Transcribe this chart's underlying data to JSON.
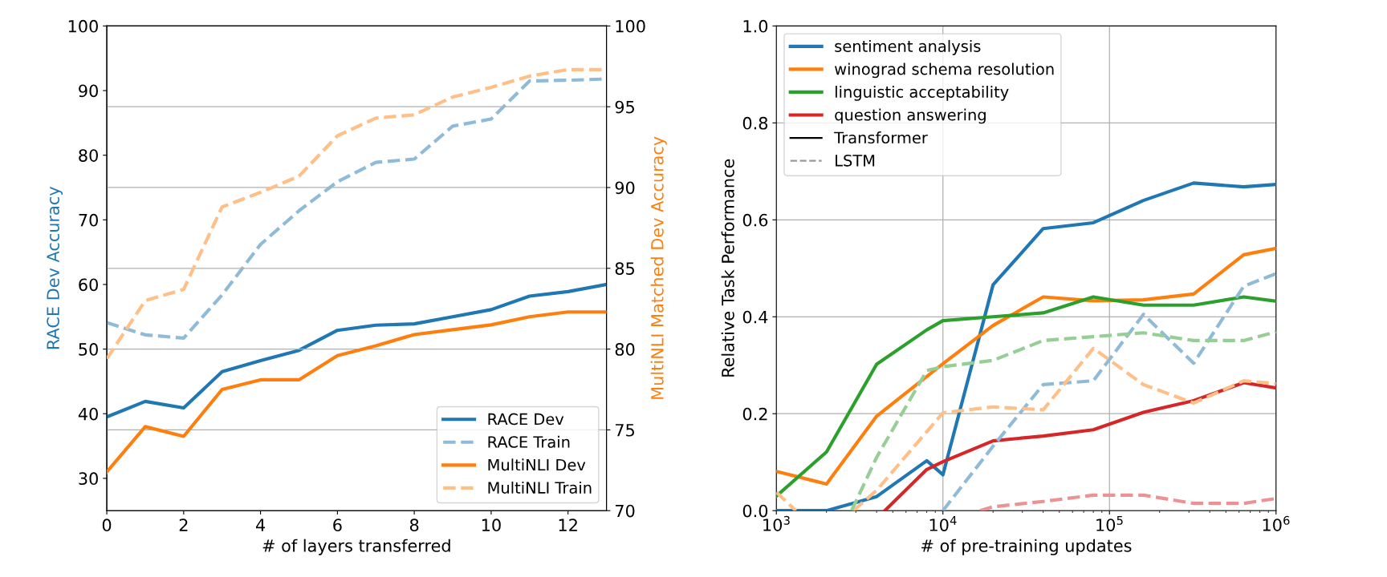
{
  "chart_data": [
    {
      "type": "line",
      "xlabel": "# of layers transferred",
      "ylabel": "RACE Dev Accuracy",
      "y2label": "MultiNLI Matched Dev Accuracy",
      "x": [
        0,
        1,
        2,
        3,
        4,
        5,
        6,
        7,
        8,
        9,
        10,
        11,
        12,
        13
      ],
      "xlim": [
        0,
        13
      ],
      "xticks": [
        0,
        2,
        4,
        6,
        8,
        10,
        12
      ],
      "ylim": [
        25,
        100
      ],
      "yticks": [
        30,
        40,
        50,
        60,
        70,
        80,
        90,
        100
      ],
      "y2lim": [
        70,
        100
      ],
      "y2ticks": [
        70,
        75,
        80,
        85,
        90,
        95,
        100
      ],
      "grid": "y2",
      "legend": "lower right",
      "series": [
        {
          "name": "RACE Dev",
          "color": "#1f77b4",
          "line_style": "solid",
          "values": [
            39.5,
            41.9,
            40.9,
            46.5,
            48.2,
            49.8,
            52.9,
            53.7,
            53.9,
            55.0,
            56.1,
            58.2,
            58.9,
            60.0
          ]
        },
        {
          "name": "RACE Train",
          "color": "#8fbbd9",
          "line_style": "dashed",
          "values": [
            54.1,
            52.2,
            51.7,
            58.4,
            66.2,
            71.4,
            75.9,
            78.9,
            79.4,
            84.5,
            85.6,
            91.5,
            91.6,
            91.8
          ]
        },
        {
          "name": "MultiNLI Dev",
          "color": "#ff7f0e",
          "line_style": "solid",
          "axis": "y2",
          "values": [
            72.4,
            75.2,
            74.6,
            77.5,
            78.1,
            78.1,
            79.6,
            80.2,
            80.9,
            81.2,
            81.5,
            82.0,
            82.3,
            82.3
          ]
        },
        {
          "name": "MultiNLI Train",
          "color": "#ffbf86",
          "line_style": "dashed",
          "axis": "y2",
          "values": [
            79.4,
            83.0,
            83.7,
            88.8,
            89.7,
            90.7,
            93.2,
            94.3,
            94.5,
            95.6,
            96.2,
            96.9,
            97.3,
            97.3
          ]
        }
      ]
    },
    {
      "type": "line",
      "xlabel": "# of pre-training updates",
      "ylabel": "Relative Task Performance",
      "log": "x",
      "xlim": [
        1000,
        1000000
      ],
      "xticks": [
        {
          "value": 1000,
          "label": "10$^{3}$"
        },
        {
          "value": 10000,
          "label": "10$^{4}$"
        },
        {
          "value": 100000,
          "label": "10$^{5}$"
        },
        {
          "value": 1000000,
          "label": "10$^{6}$"
        }
      ],
      "ylim": [
        0,
        1
      ],
      "yticks": [
        {
          "value": 0,
          "label": "0.0"
        },
        0.2,
        0.4,
        0.6,
        0.8,
        {
          "value": 1,
          "label": "1.0"
        }
      ],
      "grid": true,
      "legend": "upper left",
      "series": [
        {
          "name": "sentiment analysis",
          "color": "#1f77b4",
          "line_style": "solid",
          "x": [
            1000,
            2000,
            4000,
            8000,
            10000,
            20000,
            40000,
            80000,
            160000,
            320000,
            640000,
            1000000
          ],
          "values": [
            0,
            0,
            0.029,
            0.103,
            0.074,
            0.466,
            0.582,
            0.594,
            0.64,
            0.676,
            0.668,
            0.673
          ]
        },
        {
          "name": "winograd schema resolution",
          "color": "#ff7f0e",
          "line_style": "solid",
          "x": [
            1000,
            2000,
            4000,
            10000,
            20000,
            40000,
            80000,
            160000,
            320000,
            640000,
            1000000
          ],
          "values": [
            0.081,
            0.055,
            0.195,
            0.303,
            0.382,
            0.441,
            0.433,
            0.435,
            0.447,
            0.528,
            0.541
          ]
        },
        {
          "name": "linguistic acceptability",
          "color": "#2ca02c",
          "line_style": "solid",
          "x": [
            1000,
            2000,
            4000,
            8000,
            10000,
            20000,
            40000,
            80000,
            160000,
            320000,
            640000,
            1000000
          ],
          "values": [
            0.03,
            0.121,
            0.302,
            0.373,
            0.392,
            0.4,
            0.408,
            0.441,
            0.424,
            0.424,
            0.441,
            0.432
          ]
        },
        {
          "name": "question answering",
          "color": "#d62728",
          "line_style": "solid",
          "x": [
            4480,
            8000,
            10000,
            20000,
            40000,
            80000,
            160000,
            320000,
            640000,
            1000000
          ],
          "values": [
            0,
            0.085,
            0.101,
            0.144,
            0.154,
            0.167,
            0.203,
            0.227,
            0.264,
            0.253
          ]
        },
        {
          "name": "Transformer",
          "color": "#000000",
          "line_style": "solid"
        },
        {
          "name": "LSTM",
          "color": "#999999",
          "line_style": "dashed"
        },
        {
          "color": "#8fbbd9",
          "line_style": "dashed",
          "x": [
            10000,
            20000,
            40000,
            80000,
            160000,
            320000,
            640000,
            1000000
          ],
          "values": [
            0,
            0.133,
            0.26,
            0.268,
            0.405,
            0.304,
            0.463,
            0.489
          ]
        },
        {
          "color": "#ffbf86",
          "line_style": "dashed",
          "x": [
            1000,
            1310,
            2000,
            2900,
            4000,
            10000,
            20000,
            40000,
            80000,
            160000,
            320000,
            640000,
            1000000
          ],
          "values": [
            0.038,
            0,
            null,
            0,
            0.042,
            0.202,
            0.214,
            0.208,
            0.335,
            0.26,
            0.222,
            0.268,
            0.262
          ]
        },
        {
          "color": "#95cf95",
          "line_style": "dashed",
          "x": [
            2830,
            4000,
            8000,
            10000,
            20000,
            40000,
            80000,
            160000,
            320000,
            640000,
            1000000
          ],
          "values": [
            0,
            0.11,
            0.289,
            0.297,
            0.31,
            0.351,
            0.359,
            0.367,
            0.351,
            0.351,
            0.369
          ]
        },
        {
          "color": "#eb9394",
          "line_style": "dashed",
          "x": [
            16700,
            20000,
            40000,
            80000,
            160000,
            320000,
            640000,
            1000000
          ],
          "values": [
            0,
            0.008,
            0.019,
            0.032,
            0.032,
            0.015,
            0.015,
            0.025
          ]
        }
      ]
    }
  ]
}
